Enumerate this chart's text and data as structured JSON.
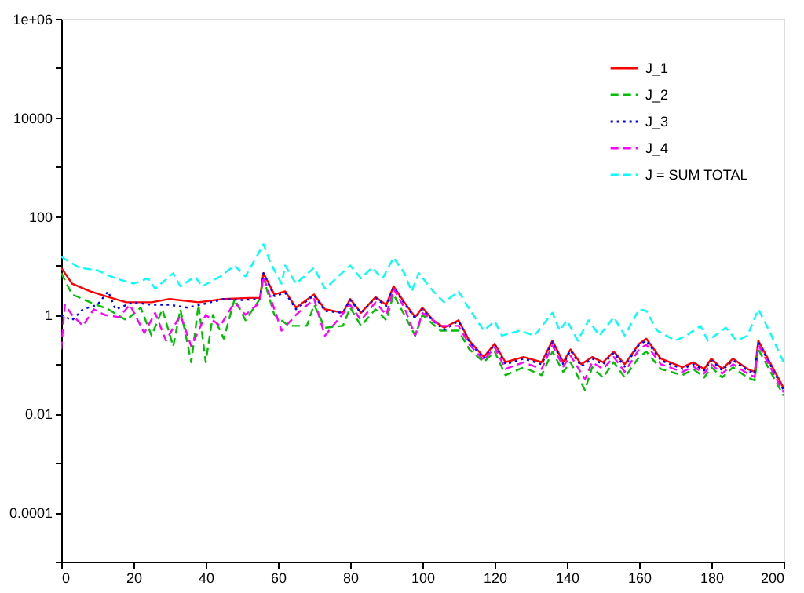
{
  "chart_data": {
    "type": "line",
    "xlim": [
      0,
      200
    ],
    "xticks": [
      0,
      20,
      40,
      60,
      80,
      100,
      120,
      140,
      160,
      180,
      200
    ],
    "ylim": [
      1e-05,
      1000000
    ],
    "log": true,
    "grid": false,
    "legend": "top right",
    "yticks": [
      {
        "value": 1000000,
        "label": "1e+06"
      },
      {
        "value": 100000,
        "label": null
      },
      10000,
      {
        "value": 1000,
        "label": null
      },
      100,
      {
        "value": 10,
        "label": null
      },
      1,
      {
        "value": 0.1,
        "label": null
      },
      0.01,
      {
        "value": 0.001,
        "label": null
      },
      0.0001,
      {
        "value": 1e-05,
        "label": null
      }
    ],
    "series": [
      {
        "name": "J_1",
        "color": "#ff0000",
        "line_style": "solid",
        "x": [
          0,
          3,
          8,
          13,
          18,
          25,
          30,
          38,
          45,
          52,
          55,
          56,
          59,
          62,
          65,
          70,
          73,
          78,
          80,
          83,
          87,
          90,
          92,
          95,
          98,
          100,
          103,
          106,
          110,
          113,
          117,
          120,
          123,
          128,
          133,
          136,
          139,
          141,
          144,
          147,
          150,
          153,
          156,
          160,
          162,
          166,
          172,
          175,
          178,
          180,
          183,
          186,
          190,
          192,
          193,
          200
        ],
        "values": [
          9,
          4.3,
          3,
          2.3,
          1.8,
          1.8,
          2.1,
          1.8,
          2.1,
          2.2,
          2.2,
          7,
          2.6,
          3,
          1.4,
          2.6,
          1.3,
          1.1,
          2.1,
          1.1,
          2.3,
          1.6,
          3.8,
          1.8,
          0.9,
          1.4,
          0.78,
          0.55,
          0.78,
          0.3,
          0.14,
          0.26,
          0.11,
          0.14,
          0.11,
          0.3,
          0.11,
          0.2,
          0.1,
          0.14,
          0.11,
          0.18,
          0.1,
          0.26,
          0.33,
          0.13,
          0.087,
          0.11,
          0.08,
          0.13,
          0.08,
          0.13,
          0.08,
          0.07,
          0.3,
          0.033
        ]
      },
      {
        "name": "J_2",
        "color": "#00c000",
        "line_style": "dashed",
        "x": [
          0,
          3,
          8,
          13,
          18,
          22,
          25,
          28,
          31,
          33,
          36,
          38,
          40,
          42,
          45,
          48,
          51,
          55,
          56,
          59,
          63,
          68,
          70,
          73,
          78,
          80,
          83,
          87,
          90,
          92,
          95,
          98,
          100,
          105,
          110,
          113,
          117,
          120,
          123,
          128,
          133,
          136,
          139,
          141,
          145,
          147,
          150,
          153,
          156,
          160,
          162,
          166,
          172,
          175,
          178,
          180,
          183,
          186,
          190,
          192,
          193,
          200
        ],
        "values": [
          7,
          2.6,
          1.8,
          1.3,
          0.78,
          1.4,
          0.38,
          1.3,
          0.23,
          1.3,
          0.11,
          1.6,
          0.11,
          1,
          0.33,
          2.1,
          0.78,
          2.1,
          5.5,
          1,
          0.6,
          0.6,
          1.6,
          0.55,
          0.6,
          1.4,
          0.6,
          1.3,
          0.78,
          2.6,
          1,
          0.38,
          1,
          0.48,
          0.48,
          0.2,
          0.11,
          0.18,
          0.06,
          0.087,
          0.06,
          0.18,
          0.07,
          0.11,
          0.03,
          0.087,
          0.054,
          0.11,
          0.054,
          0.14,
          0.18,
          0.08,
          0.06,
          0.08,
          0.054,
          0.087,
          0.054,
          0.087,
          0.054,
          0.047,
          0.2,
          0.023
        ]
      },
      {
        "name": "J_3",
        "color": "#0000ff",
        "line_style": "dotted",
        "x": [
          0,
          3,
          6,
          10,
          13,
          15,
          20,
          25,
          30,
          35,
          40,
          45,
          50,
          55,
          56,
          59,
          62,
          65,
          70,
          73,
          78,
          80,
          83,
          87,
          90,
          92,
          95,
          98,
          100,
          103,
          106,
          110,
          113,
          117,
          120,
          123,
          128,
          133,
          136,
          139,
          141,
          144,
          147,
          150,
          153,
          156,
          160,
          162,
          166,
          172,
          175,
          178,
          180,
          183,
          186,
          190,
          192,
          193,
          200
        ],
        "values": [
          1,
          0.78,
          1.3,
          1.6,
          3,
          1.3,
          1.8,
          1.6,
          1.6,
          1.4,
          1.7,
          2.1,
          2,
          2.1,
          7,
          2.4,
          2.8,
          1.3,
          2.5,
          1.2,
          1.1,
          2,
          1.1,
          2.2,
          1.5,
          3.6,
          1.7,
          0.85,
          1.3,
          0.75,
          0.5,
          0.75,
          0.28,
          0.13,
          0.25,
          0.1,
          0.13,
          0.1,
          0.28,
          0.1,
          0.19,
          0.09,
          0.13,
          0.1,
          0.17,
          0.09,
          0.25,
          0.3,
          0.12,
          0.08,
          0.1,
          0.075,
          0.12,
          0.075,
          0.12,
          0.075,
          0.065,
          0.28,
          0.03
        ]
      },
      {
        "name": "J_4",
        "color": "#ff00ff",
        "line_style": "dashed",
        "x": [
          0,
          1,
          3,
          6,
          9,
          12,
          16,
          19,
          23,
          26,
          29,
          33,
          36,
          40,
          44,
          48,
          51,
          55,
          56,
          59,
          61,
          65,
          70,
          73,
          80,
          83,
          87,
          90,
          92,
          95,
          98,
          100,
          105,
          110,
          113,
          117,
          120,
          123,
          128,
          133,
          136,
          139,
          141,
          145,
          147,
          150,
          153,
          156,
          160,
          162,
          166,
          172,
          175,
          178,
          180,
          183,
          186,
          190,
          192,
          193,
          200
        ],
        "values": [
          0.2,
          1.6,
          1,
          0.6,
          1.3,
          1,
          0.9,
          1.6,
          0.43,
          1.1,
          0.3,
          1,
          0.23,
          1,
          0.6,
          1.8,
          1,
          1.8,
          6,
          1.3,
          0.48,
          1,
          2.1,
          0.38,
          1.6,
          0.78,
          1.8,
          1,
          3.4,
          1.4,
          0.38,
          1.1,
          0.6,
          0.6,
          0.25,
          0.12,
          0.22,
          0.08,
          0.11,
          0.08,
          0.24,
          0.09,
          0.15,
          0.05,
          0.11,
          0.08,
          0.14,
          0.07,
          0.2,
          0.25,
          0.1,
          0.07,
          0.09,
          0.065,
          0.1,
          0.065,
          0.1,
          0.065,
          0.055,
          0.25,
          0.027
        ]
      },
      {
        "name": "J = SUM TOTAL",
        "color": "#00ffff",
        "line_style": "dashed",
        "x": [
          0,
          5,
          10,
          15,
          20,
          24,
          26,
          31,
          33,
          37,
          39,
          44,
          48,
          51,
          56,
          58,
          61,
          62,
          65,
          70,
          73,
          80,
          83,
          86,
          89,
          92,
          95,
          97,
          99,
          103,
          106,
          110,
          113,
          117,
          120,
          122,
          127,
          131,
          136,
          138,
          140,
          143,
          146,
          149,
          153,
          156,
          160,
          162,
          165,
          170,
          173,
          177,
          179,
          184,
          187,
          190,
          193,
          196,
          200
        ],
        "values": [
          15,
          9,
          8,
          5.5,
          4.3,
          5.5,
          3.4,
          7,
          3.8,
          6,
          3.8,
          6,
          10,
          6,
          27,
          11,
          4.3,
          10,
          4.3,
          9,
          3.4,
          10,
          5.5,
          9,
          5.5,
          14.5,
          7,
          3,
          7,
          3,
          1.8,
          3,
          1.3,
          0.48,
          0.75,
          0.38,
          0.48,
          0.38,
          1.1,
          0.48,
          0.78,
          0.3,
          0.78,
          0.38,
          0.9,
          0.38,
          1.3,
          1.2,
          0.48,
          0.3,
          0.38,
          0.6,
          0.3,
          0.55,
          0.3,
          0.38,
          1.3,
          0.48,
          0.11
        ]
      }
    ]
  }
}
